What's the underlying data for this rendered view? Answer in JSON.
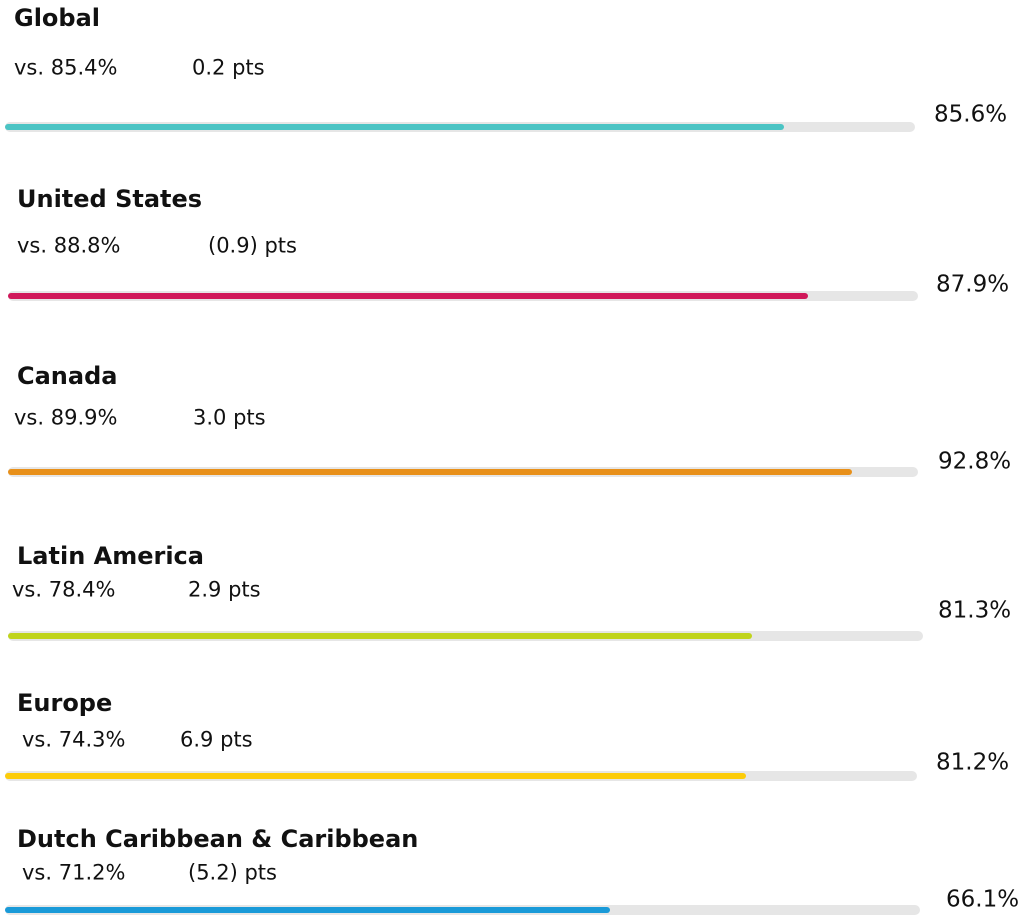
{
  "xlim": [
    0,
    100
  ],
  "items": [
    {
      "name": "Global",
      "comparison": "vs. 85.4%",
      "delta": "0.2 pts",
      "value": 85.6,
      "value_label": "85.6%",
      "color": "#4bc4c4"
    },
    {
      "name": "United States",
      "comparison": "vs. 88.8%",
      "delta": "(0.9) pts",
      "value": 87.9,
      "value_label": "87.9%",
      "color": "#d0185a"
    },
    {
      "name": "Canada",
      "comparison": "vs. 89.9%",
      "delta": "3.0 pts",
      "value": 92.8,
      "value_label": "92.8%",
      "color": "#e8901a"
    },
    {
      "name": "Latin America",
      "comparison": "vs. 78.4%",
      "delta": "2.9 pts",
      "value": 81.3,
      "value_label": "81.3%",
      "color": "#c0d41c"
    },
    {
      "name": "Europe",
      "comparison": "vs. 74.3%",
      "delta": "6.9 pts",
      "value": 81.2,
      "value_label": "81.2%",
      "color": "#fccc0a"
    },
    {
      "name": "Dutch Caribbean & Caribbean",
      "comparison": "vs. 71.2%",
      "delta": "(5.2) pts",
      "value": 66.1,
      "value_label": "66.1%",
      "color": "#1a9ad8"
    }
  ]
}
